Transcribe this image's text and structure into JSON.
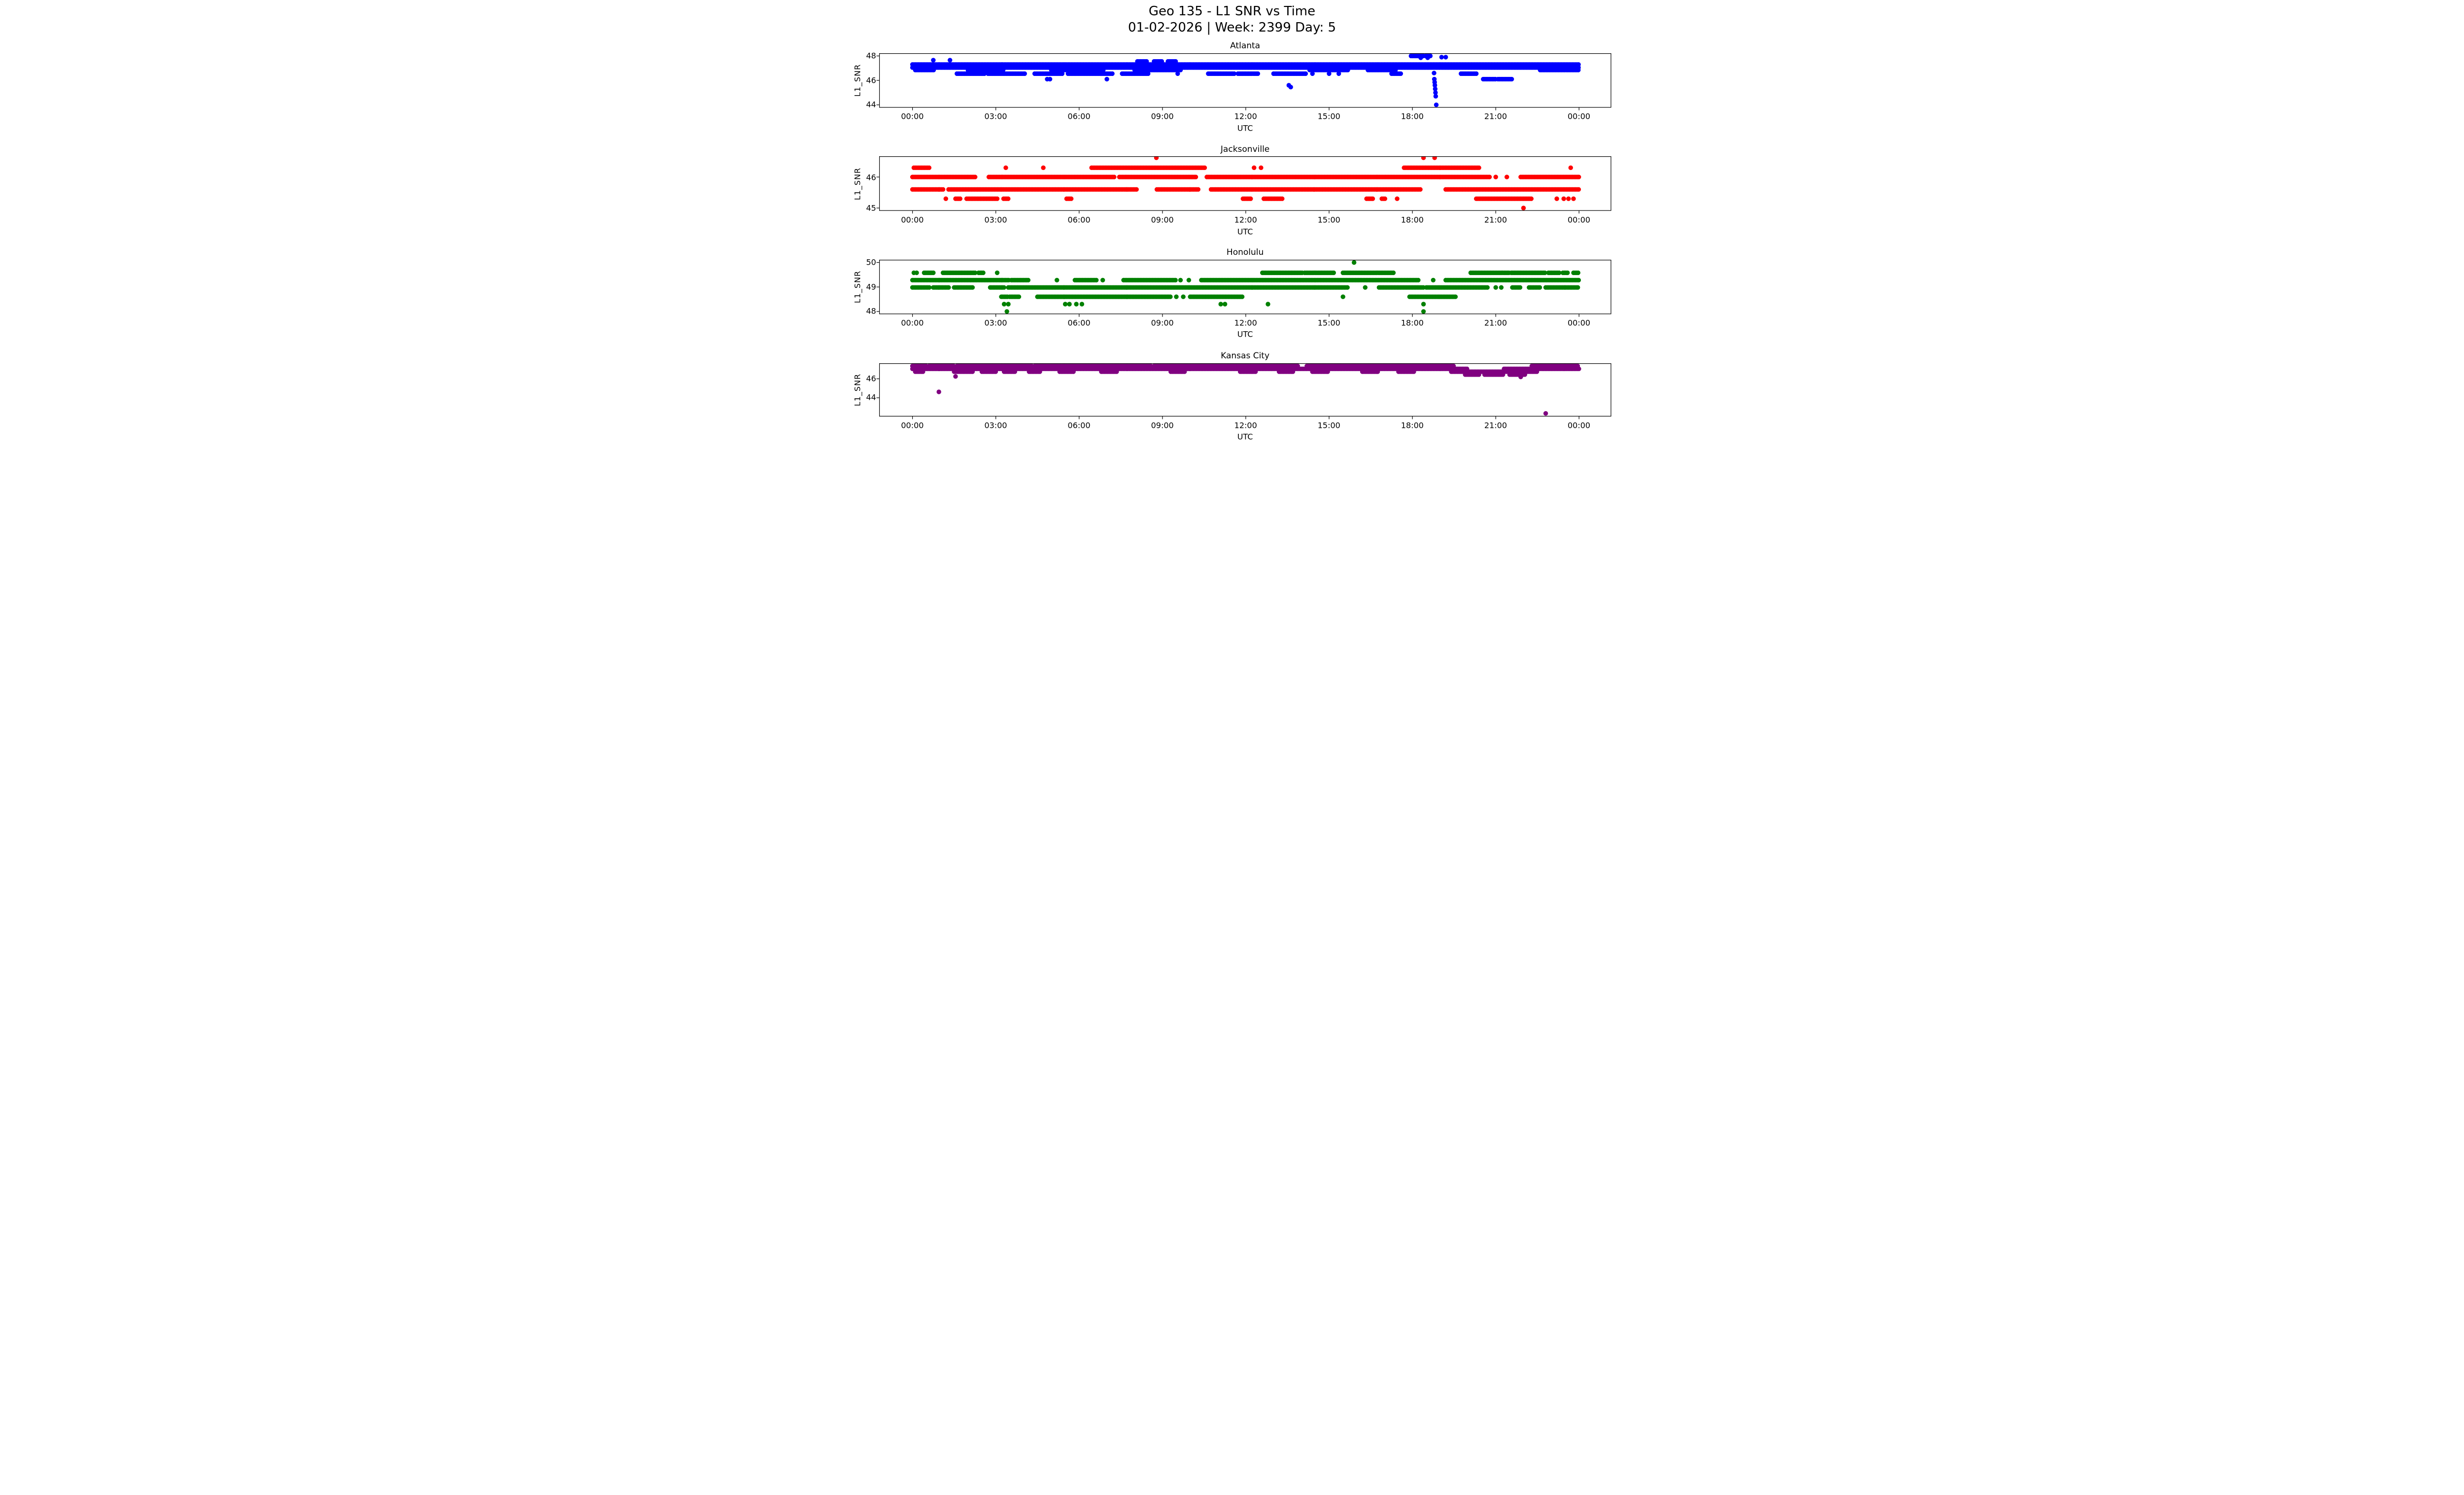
{
  "figure": {
    "suptitle_line1": "Geo 135 - L1 SNR vs Time",
    "suptitle_line2": "01-02-2026 | Week: 2399 Day: 5",
    "background": "#ffffff",
    "text_color": "#000000",
    "spine_color": "#000000"
  },
  "xaxis": {
    "label": "UTC",
    "xlim": [
      -1.2,
      25.16
    ],
    "tick_hours": [
      0,
      3,
      6,
      9,
      12,
      15,
      18,
      21,
      24
    ],
    "tick_labels": [
      "00:00",
      "03:00",
      "06:00",
      "09:00",
      "12:00",
      "15:00",
      "18:00",
      "21:00",
      "00:00"
    ]
  },
  "chart_data": [
    {
      "type": "scatter",
      "title": "Atlanta",
      "ylabel": "L1_SNR",
      "xlabel": "UTC",
      "color": "#0000ff",
      "ylim": [
        43.77,
        48.22
      ],
      "yticks": [
        44,
        46,
        48
      ],
      "x_unit": "hours_utc",
      "runs": [
        {
          "v": 47.3,
          "t": [
            [
              0,
              24
            ]
          ]
        },
        {
          "v": 47.05,
          "t": [
            [
              0,
              24
            ]
          ]
        },
        {
          "v": 46.85,
          "t": [
            [
              0.1,
              0.8
            ],
            [
              2.0,
              3.3
            ],
            [
              5.0,
              6.9
            ],
            [
              8.0,
              9.7
            ],
            [
              14.3,
              15.7
            ],
            [
              16.4,
              17.4
            ],
            [
              22.6,
              24
            ]
          ]
        },
        {
          "v": 48.0,
          "t": [
            [
              17.95,
              18.42
            ],
            [
              18.48,
              18.68
            ]
          ]
        },
        {
          "v": 47.55,
          "t": [
            [
              8.1,
              8.45
            ],
            [
              8.7,
              9.0
            ],
            [
              9.2,
              9.5
            ]
          ]
        },
        {
          "v": 46.55,
          "t": [
            [
              1.6,
              2.6
            ],
            [
              2.72,
              4.05
            ],
            [
              4.4,
              5.4
            ],
            [
              5.6,
              7.2
            ],
            [
              7.55,
              8.5
            ],
            [
              10.65,
              11.6
            ],
            [
              11.72,
              12.45
            ],
            [
              13.0,
              14.2
            ],
            [
              17.25,
              17.6
            ],
            [
              19.75,
              20.3
            ]
          ]
        },
        {
          "v": 46.1,
          "t": [
            [
              20.55,
              21.0
            ],
            [
              21.08,
              21.6
            ]
          ]
        }
      ],
      "points": [
        [
          0.75,
          47.65
        ],
        [
          1.35,
          47.65
        ],
        [
          9.55,
          46.55
        ],
        [
          14.4,
          46.55
        ],
        [
          15.0,
          46.55
        ],
        [
          15.35,
          46.55
        ],
        [
          4.85,
          46.1
        ],
        [
          4.95,
          46.1
        ],
        [
          7.0,
          46.1
        ],
        [
          13.55,
          45.6
        ],
        [
          13.62,
          45.45
        ],
        [
          18.3,
          47.85
        ],
        [
          18.55,
          47.85
        ],
        [
          19.05,
          47.9
        ],
        [
          19.2,
          47.9
        ],
        [
          18.78,
          46.6
        ],
        [
          18.79,
          46.1
        ],
        [
          18.8,
          45.85
        ],
        [
          18.81,
          45.6
        ],
        [
          18.82,
          45.3
        ],
        [
          18.83,
          45.0
        ],
        [
          18.84,
          44.7
        ],
        [
          18.86,
          44.0
        ]
      ]
    },
    {
      "type": "scatter",
      "title": "Jacksonville",
      "ylabel": "L1_SNR",
      "xlabel": "UTC",
      "color": "#ff0000",
      "ylim": [
        44.91,
        46.67
      ],
      "yticks": [
        45,
        46
      ],
      "x_unit": "hours_utc",
      "runs": [
        {
          "v": 46.3,
          "t": [
            [
              0.05,
              0.65
            ],
            [
              6.45,
              10.55
            ],
            [
              17.7,
              20.4
            ]
          ]
        },
        {
          "v": 46.0,
          "t": [
            [
              0,
              2.3
            ],
            [
              2.75,
              7.3
            ],
            [
              7.45,
              10.2
            ],
            [
              10.6,
              20.8
            ],
            [
              21.9,
              24
            ]
          ]
        },
        {
          "v": 45.6,
          "t": [
            [
              0,
              1.15
            ],
            [
              1.3,
              8.1
            ],
            [
              8.8,
              10.3
            ],
            [
              10.75,
              18.3
            ],
            [
              19.2,
              24
            ]
          ]
        },
        {
          "v": 45.3,
          "t": [
            [
              1.55,
              1.75
            ],
            [
              1.95,
              3.1
            ],
            [
              3.28,
              3.45
            ],
            [
              5.55,
              5.75
            ],
            [
              11.9,
              12.2
            ],
            [
              12.65,
              13.35
            ],
            [
              16.35,
              16.6
            ],
            [
              16.9,
              17.05
            ],
            [
              20.3,
              22.3
            ]
          ]
        }
      ],
      "points": [
        [
          3.36,
          46.3
        ],
        [
          4.71,
          46.3
        ],
        [
          12.3,
          46.3
        ],
        [
          12.55,
          46.3
        ],
        [
          23.7,
          46.3
        ],
        [
          8.78,
          46.62
        ],
        [
          18.4,
          46.62
        ],
        [
          18.8,
          46.62
        ],
        [
          21.0,
          46.0
        ],
        [
          21.4,
          46.0
        ],
        [
          1.2,
          45.3
        ],
        [
          17.45,
          45.3
        ],
        [
          23.2,
          45.3
        ],
        [
          23.45,
          45.3
        ],
        [
          23.62,
          45.3
        ],
        [
          23.8,
          45.3
        ],
        [
          22.0,
          45.0
        ]
      ]
    },
    {
      "type": "scatter",
      "title": "Honolulu",
      "ylabel": "L1_SNR",
      "xlabel": "UTC",
      "color": "#008000",
      "ylim": [
        47.89,
        50.11
      ],
      "yticks": [
        48,
        49,
        50
      ],
      "x_unit": "hours_utc",
      "runs": [
        {
          "v": 49.58,
          "t": [
            [
              0.42,
              0.75
            ],
            [
              1.1,
              2.3
            ],
            [
              2.38,
              2.58
            ],
            [
              12.6,
              14.05
            ],
            [
              14.12,
              15.2
            ],
            [
              15.5,
              17.35
            ],
            [
              20.1,
              21.5
            ],
            [
              21.56,
              22.8
            ],
            [
              22.9,
              23.3
            ],
            [
              23.42,
              23.62
            ],
            [
              23.8,
              24
            ]
          ]
        },
        {
          "v": 49.28,
          "t": [
            [
              0,
              3.5
            ],
            [
              3.56,
              4.2
            ],
            [
              5.85,
              6.65
            ],
            [
              7.6,
              9.5
            ],
            [
              10.4,
              18.25
            ],
            [
              19.2,
              24
            ]
          ]
        },
        {
          "v": 48.98,
          "t": [
            [
              0,
              0.65
            ],
            [
              0.75,
              1.3
            ],
            [
              1.5,
              2.2
            ],
            [
              2.8,
              3.3
            ],
            [
              3.45,
              15.7
            ],
            [
              16.8,
              18.4
            ],
            [
              18.5,
              20.7
            ],
            [
              21.6,
              21.9
            ],
            [
              22.2,
              22.6
            ],
            [
              22.8,
              24
            ]
          ]
        },
        {
          "v": 48.6,
          "t": [
            [
              3.2,
              3.45
            ],
            [
              3.5,
              3.85
            ],
            [
              4.5,
              9.3
            ],
            [
              10.0,
              11.9
            ],
            [
              17.9,
              19.6
            ]
          ]
        }
      ],
      "points": [
        [
          0.05,
          49.58
        ],
        [
          0.15,
          49.58
        ],
        [
          3.05,
          49.58
        ],
        [
          5.2,
          49.28
        ],
        [
          6.85,
          49.28
        ],
        [
          9.65,
          49.28
        ],
        [
          9.95,
          49.28
        ],
        [
          18.75,
          49.28
        ],
        [
          16.3,
          48.98
        ],
        [
          21.0,
          48.98
        ],
        [
          21.2,
          48.98
        ],
        [
          9.5,
          48.6
        ],
        [
          9.75,
          48.6
        ],
        [
          15.5,
          48.6
        ],
        [
          3.3,
          48.3
        ],
        [
          3.45,
          48.3
        ],
        [
          5.5,
          48.3
        ],
        [
          5.65,
          48.3
        ],
        [
          5.9,
          48.3
        ],
        [
          6.1,
          48.3
        ],
        [
          11.1,
          48.3
        ],
        [
          11.25,
          48.3
        ],
        [
          12.8,
          48.3
        ],
        [
          18.4,
          48.3
        ],
        [
          3.4,
          48.0
        ],
        [
          18.4,
          48.0
        ],
        [
          15.9,
          50.0
        ]
      ]
    },
    {
      "type": "scatter",
      "title": "Kansas City",
      "ylabel": "L1_SNR",
      "xlabel": "UTC",
      "color": "#800080",
      "ylim": [
        42.02,
        47.64
      ],
      "yticks": [
        44,
        46
      ],
      "x_unit": "hours_utc",
      "runs": [
        {
          "v": 47.35,
          "t": [
            [
              0,
              0.5
            ],
            [
              0.6,
              1.5
            ],
            [
              1.6,
              4.3
            ],
            [
              4.4,
              8.6
            ],
            [
              8.7,
              13.9
            ],
            [
              14.2,
              19.5
            ],
            [
              22.3,
              24
            ]
          ]
        },
        {
          "v": 47.05,
          "t": [
            [
              0,
              20.0
            ],
            [
              21.3,
              24
            ]
          ]
        },
        {
          "v": 46.75,
          "t": [
            [
              0.1,
              0.4
            ],
            [
              1.5,
              2.2
            ],
            [
              2.5,
              3.0
            ],
            [
              3.3,
              3.7
            ],
            [
              4.2,
              4.6
            ],
            [
              5.3,
              5.8
            ],
            [
              6.8,
              7.4
            ],
            [
              9.3,
              9.8
            ],
            [
              11.8,
              12.4
            ],
            [
              13.2,
              13.7
            ],
            [
              14.4,
              15.0
            ],
            [
              16.2,
              16.8
            ],
            [
              17.5,
              18.1
            ],
            [
              19.4,
              22.5
            ]
          ]
        },
        {
          "v": 46.45,
          "t": [
            [
              19.9,
              20.4
            ],
            [
              20.6,
              21.3
            ],
            [
              21.5,
              22.1
            ]
          ]
        }
      ],
      "points": [
        [
          1.55,
          46.25
        ],
        [
          21.9,
          46.2
        ],
        [
          0.95,
          44.62
        ],
        [
          22.8,
          42.35
        ]
      ]
    }
  ]
}
